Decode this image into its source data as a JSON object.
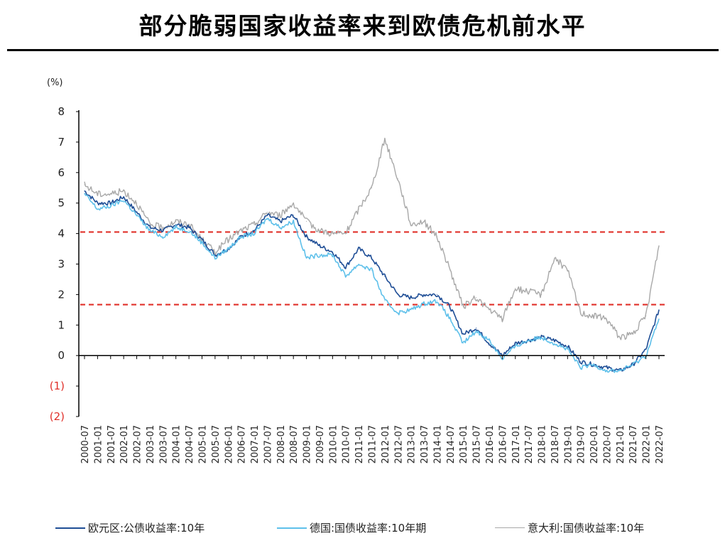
{
  "title": "部分脆弱国家收益率来到欧债危机前水平",
  "chart_data": {
    "type": "line",
    "ylabel": "(%)",
    "ylim": [
      -2,
      8
    ],
    "yticks": [
      "8",
      "7",
      "6",
      "5",
      "4",
      "3",
      "2",
      "1",
      "0",
      "(1)",
      "(2)"
    ],
    "ytick_values": [
      8,
      7,
      6,
      5,
      4,
      3,
      2,
      1,
      0,
      -1,
      -2
    ],
    "negative_tick_color": "#e0302a",
    "x_tick_labels": [
      "2000-07",
      "2001-01",
      "2001-07",
      "2002-01",
      "2002-07",
      "2003-01",
      "2003-07",
      "2004-01",
      "2004-07",
      "2005-01",
      "2005-07",
      "2006-01",
      "2006-07",
      "2007-01",
      "2007-07",
      "2008-01",
      "2008-07",
      "2009-01",
      "2009-07",
      "2010-01",
      "2010-07",
      "2011-01",
      "2011-07",
      "2012-01",
      "2012-07",
      "2013-01",
      "2013-07",
      "2014-01",
      "2014-07",
      "2015-01",
      "2015-07",
      "2016-01",
      "2016-07",
      "2017-01",
      "2017-07",
      "2018-01",
      "2018-07",
      "2019-01",
      "2019-07",
      "2020-01",
      "2020-07",
      "2021-01",
      "2021-07",
      "2022-01",
      "2022-07"
    ],
    "reference_lines": [
      {
        "y": 4.05,
        "color": "#e0302a",
        "style": "dashed"
      },
      {
        "y": 1.67,
        "color": "#e0302a",
        "style": "dashed"
      }
    ],
    "series": [
      {
        "name": "欧元区:公债收益率:10年",
        "color": "#1f4e96",
        "x": [
          "2000-07",
          "2001-01",
          "2001-07",
          "2002-01",
          "2002-07",
          "2003-01",
          "2003-07",
          "2004-01",
          "2004-07",
          "2005-01",
          "2005-07",
          "2006-01",
          "2006-07",
          "2007-01",
          "2007-07",
          "2008-01",
          "2008-07",
          "2009-01",
          "2009-07",
          "2010-01",
          "2010-07",
          "2011-01",
          "2011-07",
          "2012-01",
          "2012-07",
          "2013-01",
          "2013-07",
          "2014-01",
          "2014-07",
          "2015-01",
          "2015-07",
          "2016-01",
          "2016-07",
          "2017-01",
          "2017-07",
          "2018-01",
          "2018-07",
          "2019-01",
          "2019-07",
          "2020-01",
          "2020-07",
          "2021-01",
          "2021-07",
          "2022-01",
          "2022-07"
        ],
        "values": [
          5.4,
          5.0,
          5.0,
          5.2,
          4.7,
          4.2,
          4.1,
          4.3,
          4.2,
          3.8,
          3.3,
          3.5,
          3.9,
          4.1,
          4.6,
          4.4,
          4.6,
          3.9,
          3.6,
          3.4,
          2.9,
          3.5,
          3.2,
          2.6,
          2.0,
          1.9,
          2.0,
          2.0,
          1.6,
          0.7,
          0.9,
          0.4,
          0.0,
          0.4,
          0.5,
          0.6,
          0.5,
          0.3,
          -0.2,
          -0.3,
          -0.4,
          -0.5,
          -0.3,
          0.2,
          1.5
        ]
      },
      {
        "name": "德国:国债收益率:10年期",
        "color": "#5ec0ea",
        "x": [
          "2000-07",
          "2001-01",
          "2001-07",
          "2002-01",
          "2002-07",
          "2003-01",
          "2003-07",
          "2004-01",
          "2004-07",
          "2005-01",
          "2005-07",
          "2006-01",
          "2006-07",
          "2007-01",
          "2007-07",
          "2008-01",
          "2008-07",
          "2009-01",
          "2009-07",
          "2010-01",
          "2010-07",
          "2011-01",
          "2011-07",
          "2012-01",
          "2012-07",
          "2013-01",
          "2013-07",
          "2014-01",
          "2014-07",
          "2015-01",
          "2015-07",
          "2016-01",
          "2016-07",
          "2017-01",
          "2017-07",
          "2018-01",
          "2018-07",
          "2019-01",
          "2019-07",
          "2020-01",
          "2020-07",
          "2021-01",
          "2021-07",
          "2022-01",
          "2022-07"
        ],
        "values": [
          5.3,
          4.8,
          4.9,
          5.1,
          4.6,
          4.1,
          3.9,
          4.2,
          4.1,
          3.7,
          3.2,
          3.5,
          3.9,
          4.0,
          4.5,
          4.2,
          4.4,
          3.2,
          3.3,
          3.3,
          2.6,
          3.0,
          2.8,
          1.8,
          1.4,
          1.5,
          1.7,
          1.8,
          1.2,
          0.4,
          0.8,
          0.5,
          -0.1,
          0.3,
          0.5,
          0.6,
          0.4,
          0.2,
          -0.4,
          -0.3,
          -0.5,
          -0.5,
          -0.3,
          0.0,
          1.2
        ]
      },
      {
        "name": "意大利:国债收益率:10年",
        "color": "#a8a8a8",
        "x": [
          "2000-07",
          "2001-01",
          "2001-07",
          "2002-01",
          "2002-07",
          "2003-01",
          "2003-07",
          "2004-01",
          "2004-07",
          "2005-01",
          "2005-07",
          "2006-01",
          "2006-07",
          "2007-01",
          "2007-07",
          "2008-01",
          "2008-07",
          "2009-01",
          "2009-07",
          "2010-01",
          "2010-07",
          "2011-01",
          "2011-07",
          "2012-01",
          "2012-07",
          "2013-01",
          "2013-07",
          "2014-01",
          "2014-07",
          "2015-01",
          "2015-07",
          "2016-01",
          "2016-07",
          "2017-01",
          "2017-07",
          "2018-01",
          "2018-07",
          "2019-01",
          "2019-07",
          "2020-01",
          "2020-07",
          "2021-01",
          "2021-07",
          "2022-01",
          "2022-07"
        ],
        "values": [
          5.6,
          5.3,
          5.3,
          5.4,
          5.0,
          4.3,
          4.2,
          4.4,
          4.3,
          3.8,
          3.4,
          3.8,
          4.1,
          4.3,
          4.7,
          4.6,
          5.0,
          4.4,
          4.1,
          4.0,
          4.0,
          4.8,
          5.5,
          7.1,
          5.8,
          4.3,
          4.4,
          3.9,
          2.8,
          1.6,
          1.9,
          1.5,
          1.2,
          2.2,
          2.1,
          2.0,
          3.2,
          2.8,
          1.4,
          1.3,
          1.2,
          0.6,
          0.7,
          1.3,
          3.6
        ]
      }
    ],
    "legend": "bottom"
  }
}
